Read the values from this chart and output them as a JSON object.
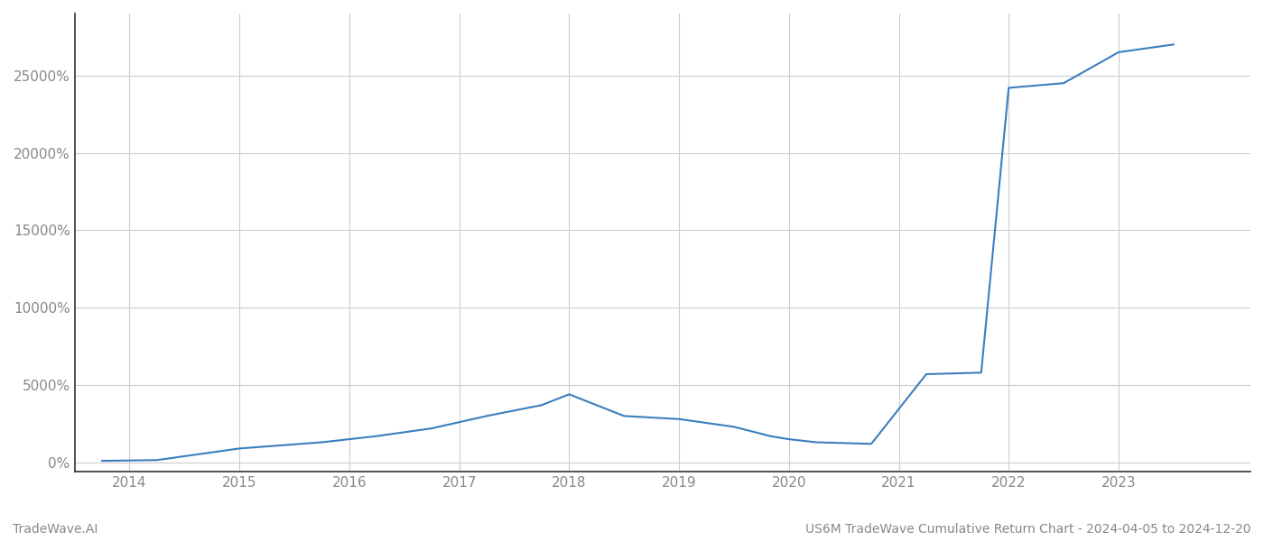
{
  "title": "US6M TradeWave Cumulative Return Chart - 2024-04-05 to 2024-12-20",
  "watermark": "TradeWave.AI",
  "line_color": "#3a7ebf",
  "background_color": "#ffffff",
  "grid_color": "#cccccc",
  "x_years": [
    2014,
    2015,
    2016,
    2017,
    2018,
    2019,
    2020,
    2021,
    2022,
    2023
  ],
  "x_values": [
    2013.75,
    2014.25,
    2015.0,
    2015.75,
    2016.25,
    2016.75,
    2017.25,
    2017.75,
    2018.0,
    2018.5,
    2019.0,
    2019.5,
    2019.83,
    2020.0,
    2020.25,
    2020.75,
    2021.25,
    2021.75,
    2022.0,
    2022.5,
    2023.0,
    2023.5
  ],
  "y_values": [
    100,
    150,
    900,
    1300,
    1700,
    2200,
    3000,
    3700,
    4400,
    3000,
    2800,
    2300,
    1700,
    1500,
    1300,
    1200,
    5700,
    5800,
    24200,
    24500,
    26500,
    27000
  ],
  "yticks": [
    0,
    5000,
    10000,
    15000,
    20000,
    25000
  ],
  "ylim": [
    -600,
    29000
  ],
  "xlim": [
    2013.5,
    2024.2
  ],
  "tick_color": "#888888",
  "spine_color": "#333333",
  "label_fontsize": 11,
  "footer_fontsize": 10
}
